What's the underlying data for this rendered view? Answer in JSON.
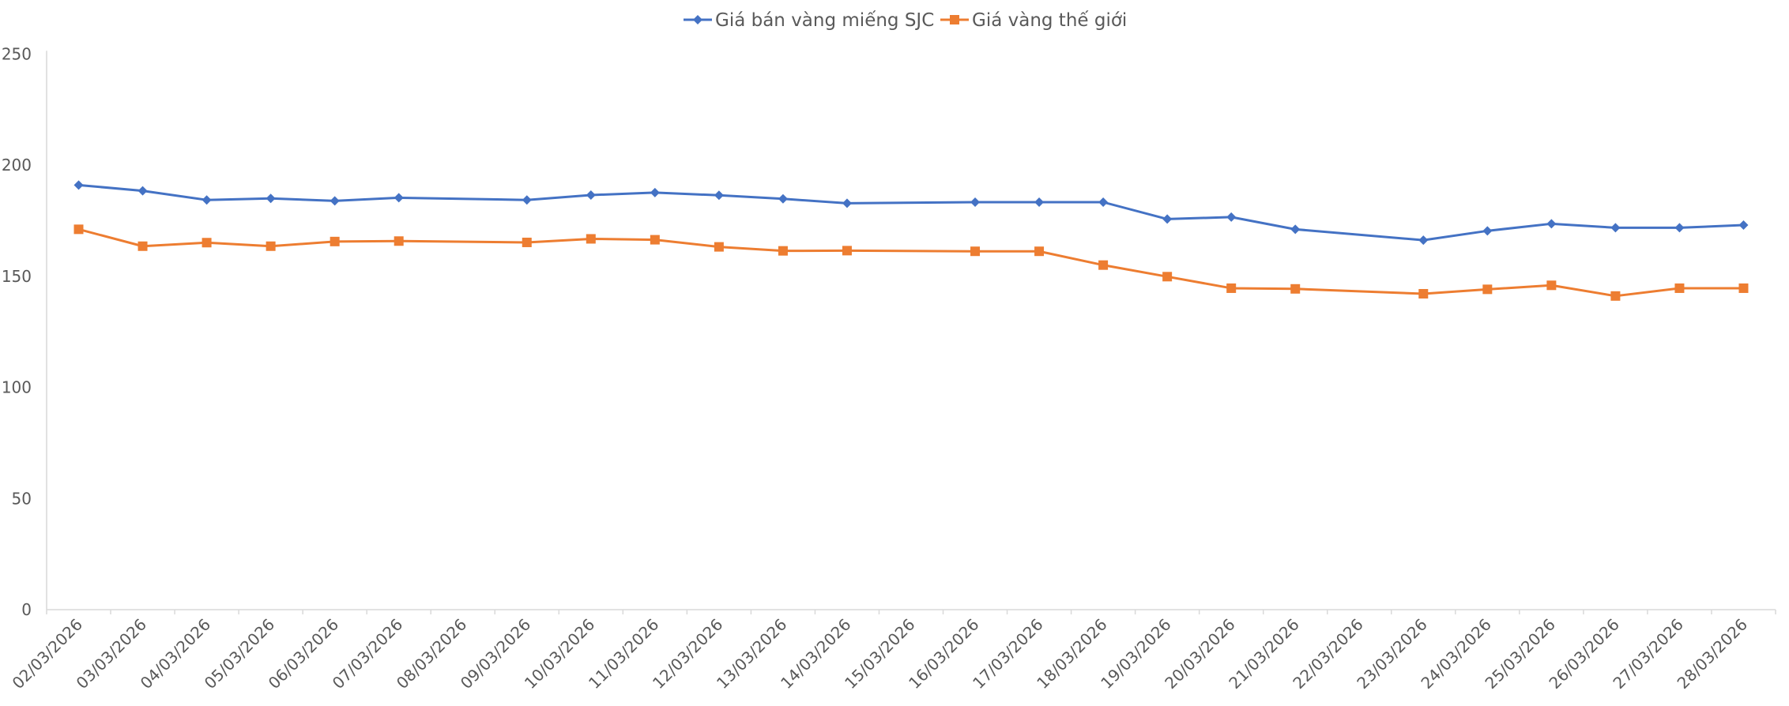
{
  "chart_data": {
    "type": "line",
    "title": "",
    "xlabel": "",
    "ylabel": "",
    "ylim": [
      0,
      250
    ],
    "yticks": [
      0,
      50,
      100,
      150,
      200,
      250
    ],
    "grid": false,
    "legend_position": "top",
    "categories": [
      "02/03/2026",
      "03/03/2026",
      "04/03/2026",
      "05/03/2026",
      "06/03/2026",
      "07/03/2026",
      "08/03/2026",
      "09/03/2026",
      "10/03/2026",
      "11/03/2026",
      "12/03/2026",
      "13/03/2026",
      "14/03/2026",
      "15/03/2026",
      "16/03/2026",
      "17/03/2026",
      "18/03/2026",
      "19/03/2026",
      "20/03/2026",
      "21/03/2026",
      "22/03/2026",
      "23/03/2026",
      "24/03/2026",
      "25/03/2026",
      "26/03/2026",
      "27/03/2026",
      "28/03/2026"
    ],
    "series": [
      {
        "name": "Giá bán vàng miếng SJC",
        "color": "#4472C4",
        "marker": "diamond",
        "values": [
          191.0,
          188.4,
          184.3,
          185.0,
          183.9,
          185.3,
          null,
          184.3,
          186.5,
          187.6,
          186.4,
          184.8,
          182.8,
          null,
          183.3,
          183.3,
          183.3,
          175.7,
          176.6,
          171.1,
          null,
          166.2,
          170.4,
          173.6,
          171.8,
          171.8,
          173.0
        ]
      },
      {
        "name": "Giá vàng thế giới",
        "color": "#ED7D31",
        "marker": "square",
        "values": [
          171.1,
          163.5,
          165.1,
          163.5,
          165.6,
          165.8,
          null,
          165.2,
          166.8,
          166.4,
          163.2,
          161.4,
          161.5,
          null,
          161.2,
          161.2,
          155.0,
          149.8,
          144.6,
          144.3,
          null,
          142.1,
          144.1,
          145.9,
          141.1,
          144.6,
          144.6
        ]
      }
    ]
  }
}
